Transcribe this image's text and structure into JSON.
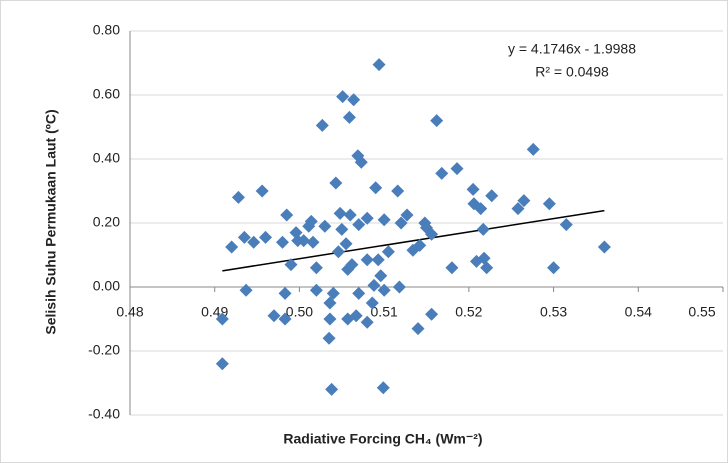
{
  "chart_data": {
    "type": "scatter",
    "x_label": "Radiative Forcing CH₄ (Wm⁻²)",
    "y_label": "Selisih Suhu Permukaan Laut (ºC)",
    "color": "#4a7ebb",
    "grid": true,
    "xlim": [
      0.48,
      0.55
    ],
    "ylim": [
      -0.4,
      0.8
    ],
    "xticks": [
      0.48,
      0.49,
      {
        "value": 0.5,
        "label": "0.50"
      },
      0.51,
      0.52,
      0.53,
      0.54,
      0.55
    ],
    "yticks": [
      {
        "value": -0.4,
        "label": "-0.40"
      },
      {
        "value": -0.2,
        "label": "-0.20"
      },
      {
        "value": 0,
        "label": "0.00"
      },
      {
        "value": 0.2,
        "label": "0.20"
      },
      {
        "value": 0.4,
        "label": "0.40"
      },
      {
        "value": 0.6,
        "label": "0.60"
      },
      {
        "value": 0.8,
        "label": "0.80"
      }
    ],
    "x": [
      0.4909,
      0.4909,
      0.492,
      0.4928,
      0.4935,
      0.4937,
      0.4946,
      0.4956,
      0.496,
      0.497,
      0.498,
      0.4983,
      0.4983,
      0.4985,
      0.499,
      0.4996,
      0.4998,
      0.5005,
      0.5011,
      0.5014,
      0.5016,
      0.502,
      0.502,
      0.5027,
      0.503,
      0.5036,
      0.5036,
      0.5035,
      0.5038,
      0.504,
      0.5043,
      0.5046,
      0.5048,
      0.5051,
      0.505,
      0.5055,
      0.5057,
      0.5057,
      0.5059,
      0.506,
      0.5062,
      0.5064,
      0.5067,
      0.5069,
      0.507,
      0.507,
      0.5073,
      0.508,
      0.508,
      0.508,
      0.5086,
      0.5088,
      0.509,
      0.5093,
      0.5094,
      0.5096,
      0.5099,
      0.51,
      0.51,
      0.5105,
      0.5116,
      0.5118,
      0.512,
      0.5127,
      0.5134,
      0.514,
      0.5142,
      0.5148,
      0.515,
      0.5156,
      0.5156,
      0.5162,
      0.5168,
      0.518,
      0.5186,
      0.5205,
      0.5206,
      0.5209,
      0.5214,
      0.5217,
      0.5218,
      0.5221,
      0.5227,
      0.5258,
      0.5265,
      0.5276,
      0.5295,
      0.53,
      0.5315,
      0.536
    ],
    "values": [
      -0.24,
      -0.1,
      0.125,
      0.28,
      0.155,
      -0.01,
      0.14,
      0.3,
      0.155,
      -0.09,
      0.14,
      -0.02,
      -0.1,
      0.225,
      0.07,
      0.17,
      0.145,
      0.145,
      0.19,
      0.205,
      0.14,
      0.06,
      -0.01,
      0.505,
      0.19,
      -0.05,
      -0.1,
      -0.16,
      -0.32,
      -0.02,
      0.325,
      0.11,
      0.23,
      0.595,
      0.18,
      0.135,
      0.055,
      -0.1,
      0.53,
      0.225,
      0.07,
      0.585,
      -0.09,
      0.41,
      0.195,
      -0.02,
      0.39,
      -0.11,
      0.085,
      0.215,
      -0.05,
      0.005,
      0.31,
      0.085,
      0.695,
      0.035,
      -0.315,
      -0.01,
      0.21,
      0.11,
      0.3,
      0,
      0.2,
      0.225,
      0.115,
      -0.13,
      0.13,
      0.2,
      0.185,
      0.165,
      -0.085,
      0.52,
      0.355,
      0.06,
      0.37,
      0.305,
      0.26,
      0.08,
      0.245,
      0.18,
      0.09,
      0.06,
      0.285,
      0.245,
      0.27,
      0.43,
      0.26,
      0.06,
      0.195,
      0.125
    ],
    "trendline": {
      "equation": "y = 4.1746x - 1.9988",
      "r2_label": "R² = 0.0498",
      "slope": 4.1746,
      "intercept": -1.9988,
      "color": "#000000"
    }
  }
}
